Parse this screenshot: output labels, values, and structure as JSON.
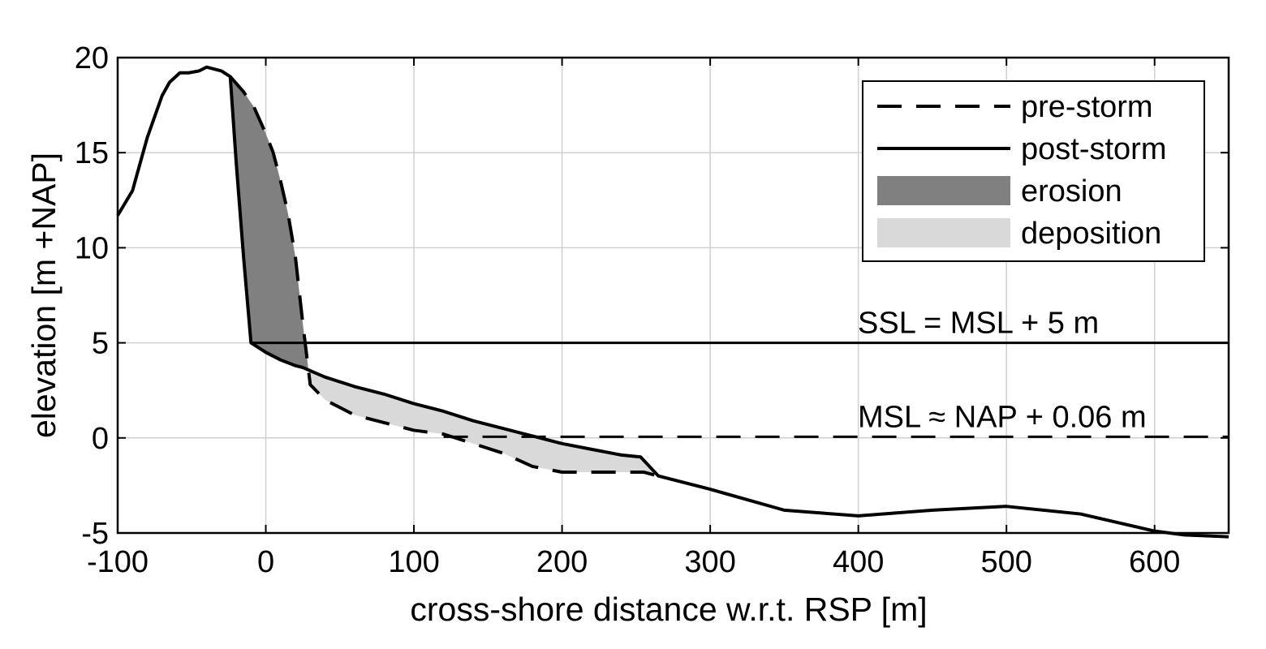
{
  "chart_data": {
    "type": "line",
    "title": "",
    "xlabel": "cross-shore distance w.r.t. RSP [m]",
    "ylabel": "elevation [m +NAP]",
    "xlim": [
      -100,
      650
    ],
    "ylim": [
      -5,
      20
    ],
    "xticks": [
      -100,
      0,
      100,
      200,
      300,
      400,
      500,
      600
    ],
    "yticks": [
      -5,
      0,
      5,
      10,
      15,
      20
    ],
    "xtick_labels": [
      "-100",
      "0",
      "100",
      "200",
      "300",
      "400",
      "500",
      "600"
    ],
    "ytick_labels": [
      "-5",
      "0",
      "5",
      "10",
      "15",
      "20"
    ],
    "grid": true,
    "legend_position": "top-right",
    "legend": [
      "pre-storm",
      "post-storm",
      "erosion",
      "deposition"
    ],
    "colors": {
      "erosion": "#808080",
      "deposition": "#d9d9d9",
      "line": "#000000",
      "grid": "#d0d0d0"
    },
    "series": [
      {
        "name": "pre-storm",
        "style": "dashed",
        "x": [
          -24,
          -15,
          -8,
          0,
          5,
          10,
          15,
          20,
          25,
          30,
          40,
          60,
          80,
          100,
          120,
          140,
          160,
          180,
          200,
          220,
          240,
          255,
          265
        ],
        "y": [
          19.0,
          18.2,
          17.4,
          16.0,
          15.0,
          13.5,
          11.8,
          9.5,
          6.0,
          2.8,
          2.0,
          1.2,
          0.8,
          0.4,
          0.2,
          -0.3,
          -0.8,
          -1.5,
          -1.8,
          -1.8,
          -1.8,
          -1.8,
          -2.0
        ]
      },
      {
        "name": "post-storm",
        "style": "solid",
        "x": [
          -100,
          -90,
          -80,
          -70,
          -65,
          -58,
          -52,
          -45,
          -40,
          -30,
          -24,
          -20,
          -15,
          -10,
          0,
          10,
          20,
          25,
          40,
          60,
          80,
          100,
          120,
          140,
          160,
          180,
          200,
          220,
          240,
          253,
          265,
          300,
          350,
          400,
          450,
          500,
          550,
          600,
          620,
          650
        ],
        "y": [
          11.7,
          13.0,
          15.8,
          18.0,
          18.7,
          19.2,
          19.2,
          19.3,
          19.5,
          19.3,
          19.0,
          14.5,
          9.5,
          5.0,
          4.5,
          4.1,
          3.8,
          3.7,
          3.2,
          2.7,
          2.3,
          1.8,
          1.4,
          0.9,
          0.5,
          0.1,
          -0.3,
          -0.6,
          -0.9,
          -1.0,
          -2.0,
          -2.7,
          -3.8,
          -4.1,
          -3.8,
          -3.6,
          -4.0,
          -4.9,
          -5.1,
          -5.2
        ]
      }
    ],
    "reference_lines": [
      {
        "label": "SSL = MSL + 5 m",
        "y": 5.0,
        "x_start": -10,
        "style": "solid"
      },
      {
        "label": "MSL ≈ NAP + 0.06 m",
        "y": 0.06,
        "x_start": 120,
        "style": "dashed"
      }
    ]
  }
}
